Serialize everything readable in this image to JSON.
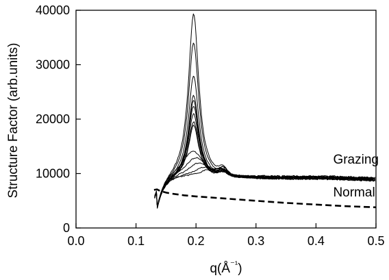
{
  "chart_data": {
    "type": "line",
    "xlabel": "q(Å⁻¹)",
    "ylabel": "Structure Factor (arb.units)",
    "xlim": [
      0.0,
      0.5
    ],
    "ylim": [
      0,
      40000
    ],
    "xticks": [
      0.0,
      0.1,
      0.2,
      0.3,
      0.4,
      0.5
    ],
    "xtick_labels": [
      "0.0",
      "0.1",
      "0.2",
      "0.3",
      "0.4",
      "0.5"
    ],
    "yticks": [
      0,
      10000,
      20000,
      30000,
      40000
    ],
    "ytick_labels": [
      "0",
      "10000",
      "20000",
      "30000",
      "40000"
    ],
    "grid": false,
    "annotations": [
      {
        "text": "Grazing",
        "x": 0.44,
        "y": 11800
      },
      {
        "text": "Normal",
        "x": 0.44,
        "y": 5800
      }
    ],
    "series": [
      {
        "style": "solid",
        "peak_q": 0.196,
        "peak_value": 39600
      },
      {
        "style": "solid",
        "peak_q": 0.196,
        "peak_value": 34300
      },
      {
        "style": "solid",
        "peak_q": 0.196,
        "peak_value": 28200
      },
      {
        "style": "solid",
        "peak_q": 0.196,
        "peak_value": 24500
      },
      {
        "style": "solid",
        "peak_q": 0.196,
        "peak_value": 23600
      },
      {
        "style": "solid",
        "peak_q": 0.196,
        "peak_value": 22500
      },
      {
        "style": "solid",
        "peak_q": 0.196,
        "peak_value": 21000
      },
      {
        "style": "solid",
        "peak_q": 0.196,
        "peak_value": 19500
      },
      {
        "style": "solid",
        "peak_q": 0.196,
        "peak_value": 18800
      },
      {
        "style": "solid",
        "peak_q": 0.195,
        "peak_value": 14000
      },
      {
        "style": "solid",
        "peak_q": 0.2,
        "peak_value": 12800
      },
      {
        "style": "solid",
        "peak_q": 0.205,
        "peak_value": 11800
      },
      {
        "style": "solid",
        "peak_q": 0.215,
        "peak_value": 11000
      },
      {
        "style": "solid",
        "peak_q": 0.225,
        "peak_value": 10600
      },
      {
        "style": "dashed",
        "values": [
          [
            0.13,
            7000
          ],
          [
            0.135,
            7100
          ],
          [
            0.14,
            6800
          ],
          [
            0.15,
            6500
          ],
          [
            0.16,
            6300
          ],
          [
            0.18,
            6000
          ],
          [
            0.2,
            5800
          ],
          [
            0.25,
            5400
          ],
          [
            0.3,
            5000
          ],
          [
            0.35,
            4600
          ],
          [
            0.4,
            4300
          ],
          [
            0.45,
            4000
          ],
          [
            0.5,
            3800
          ]
        ]
      }
    ]
  }
}
